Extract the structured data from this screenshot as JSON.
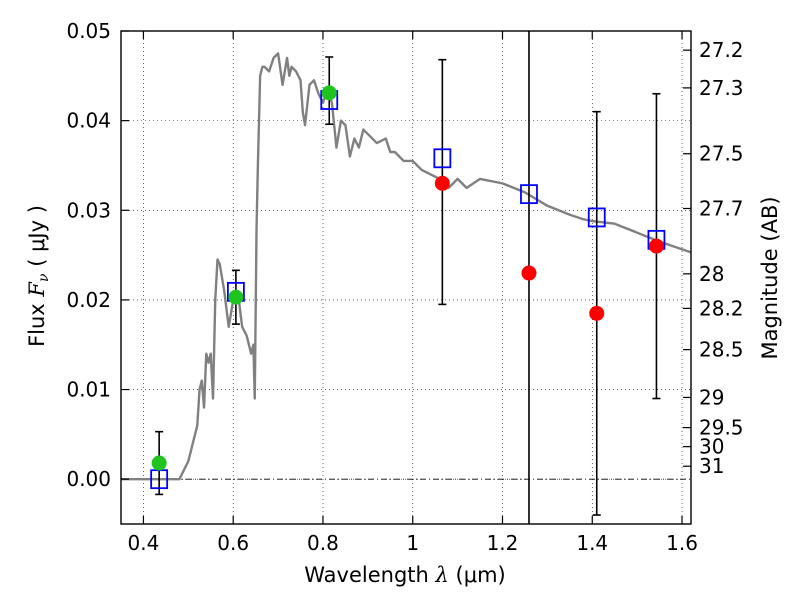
{
  "chart_data": {
    "type": "scatter",
    "xlabel": {
      "text": "Wavelength",
      "symbol": "λ",
      "unit": "(μm)"
    },
    "ylabel": {
      "text": "Flux",
      "symbol": "F",
      "subscript": "ν",
      "unit": "( μJy )"
    },
    "y2label": "Magnitude (AB)",
    "xlim": [
      0.35,
      1.62
    ],
    "ylim": [
      -0.005,
      0.05
    ],
    "x_ticks": [
      0.4,
      0.6,
      0.8,
      1.0,
      1.2,
      1.4,
      1.6
    ],
    "x_tick_labels": [
      "0.4",
      "0.6",
      "0.8",
      "1",
      "1.2",
      "1.4",
      "1.6"
    ],
    "y_ticks": [
      0.0,
      0.01,
      0.02,
      0.03,
      0.04,
      0.05
    ],
    "y_tick_labels": [
      "0.00",
      "0.01",
      "0.02",
      "0.03",
      "0.04",
      "0.05"
    ],
    "y2_ticks": [
      {
        "label": "27.2",
        "mag": 27.2
      },
      {
        "label": "27.3",
        "mag": 27.3
      },
      {
        "label": "27.5",
        "mag": 27.5
      },
      {
        "label": "27.7",
        "mag": 27.7
      },
      {
        "label": "28",
        "mag": 28.0
      },
      {
        "label": "28.2",
        "mag": 28.2
      },
      {
        "label": "28.5",
        "mag": 28.5
      },
      {
        "label": "29",
        "mag": 29.0
      },
      {
        "label": "29.5",
        "mag": 29.5
      },
      {
        "label": "30",
        "mag": 30.0
      },
      {
        "label": "31",
        "mag": 31.0
      }
    ],
    "grid": true,
    "zero_line": true,
    "colors": {
      "sed": "#808080",
      "detections": "#1fc41f",
      "nondetections": "#ff0000",
      "model_points": "#0000ff",
      "errorbars": "#000000"
    },
    "sed_model": {
      "x": [
        0.35,
        0.48,
        0.5,
        0.52,
        0.525,
        0.53,
        0.535,
        0.54,
        0.545,
        0.55,
        0.555,
        0.56,
        0.565,
        0.57,
        0.58,
        0.59,
        0.6,
        0.61,
        0.62,
        0.63,
        0.64,
        0.645,
        0.648,
        0.652,
        0.655,
        0.66,
        0.665,
        0.67,
        0.68,
        0.69,
        0.7,
        0.71,
        0.72,
        0.725,
        0.73,
        0.74,
        0.75,
        0.755,
        0.76,
        0.77,
        0.78,
        0.79,
        0.8,
        0.81,
        0.82,
        0.83,
        0.84,
        0.85,
        0.86,
        0.87,
        0.88,
        0.89,
        0.9,
        0.92,
        0.94,
        0.95,
        0.96,
        0.98,
        1.0,
        1.02,
        1.04,
        1.06,
        1.08,
        1.1,
        1.12,
        1.15,
        1.2,
        1.25,
        1.3,
        1.35,
        1.38,
        1.4,
        1.45,
        1.5,
        1.55,
        1.62
      ],
      "y": [
        0.0,
        0.0,
        0.002,
        0.006,
        0.01,
        0.011,
        0.008,
        0.014,
        0.013,
        0.014,
        0.009,
        0.02,
        0.0245,
        0.024,
        0.021,
        0.017,
        0.02,
        0.021,
        0.017,
        0.016,
        0.014,
        0.015,
        0.009,
        0.028,
        0.035,
        0.045,
        0.046,
        0.046,
        0.0455,
        0.047,
        0.0475,
        0.044,
        0.047,
        0.045,
        0.046,
        0.0455,
        0.0445,
        0.041,
        0.0395,
        0.044,
        0.0445,
        0.043,
        0.042,
        0.0435,
        0.042,
        0.037,
        0.04,
        0.0395,
        0.036,
        0.038,
        0.037,
        0.039,
        0.0385,
        0.0375,
        0.038,
        0.0365,
        0.0365,
        0.0355,
        0.0355,
        0.0345,
        0.034,
        0.0335,
        0.0325,
        0.0335,
        0.0325,
        0.0335,
        0.033,
        0.032,
        0.0305,
        0.0295,
        0.029,
        0.0288,
        0.0285,
        0.0275,
        0.0265,
        0.0253
      ]
    },
    "detections": [
      {
        "x": 0.435,
        "y": 0.0018,
        "err_low": 0.0035,
        "err_high": 0.0035
      },
      {
        "x": 0.606,
        "y": 0.0203,
        "err_low": 0.003,
        "err_high": 0.003
      },
      {
        "x": 0.814,
        "y": 0.0431,
        "err_low": 0.0035,
        "err_high": 0.004
      }
    ],
    "nondetections": [
      {
        "x": 1.066,
        "y": 0.033,
        "err_low": 0.0135,
        "err_high": 0.0138
      },
      {
        "x": 1.259,
        "y": 0.023,
        "err_low": 0.03,
        "err_high": 0.03
      },
      {
        "x": 1.41,
        "y": 0.0185,
        "err_low": 0.0225,
        "err_high": 0.0225
      },
      {
        "x": 1.543,
        "y": 0.026,
        "err_low": 0.017,
        "err_high": 0.017
      }
    ],
    "model_points": [
      {
        "x": 0.435,
        "y": 0.0
      },
      {
        "x": 0.606,
        "y": 0.0209
      },
      {
        "x": 0.814,
        "y": 0.0423
      },
      {
        "x": 1.066,
        "y": 0.0358
      },
      {
        "x": 1.259,
        "y": 0.0318
      },
      {
        "x": 1.41,
        "y": 0.0292
      },
      {
        "x": 1.543,
        "y": 0.0267
      }
    ]
  }
}
